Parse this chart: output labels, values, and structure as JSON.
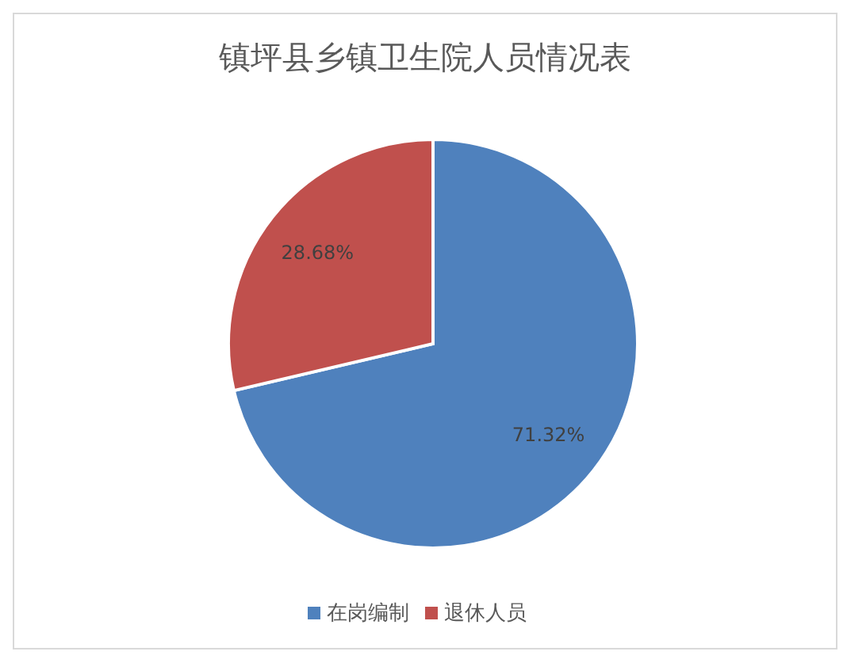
{
  "chart_data": {
    "type": "pie",
    "title": "镇坪县乡镇卫生院人员情况表",
    "categories": [
      "在岗编制",
      "退休人员"
    ],
    "values": [
      71.32,
      28.68
    ],
    "colors": [
      "#4f81bd",
      "#c0504d"
    ],
    "value_labels": [
      "71.32%",
      "28.68%"
    ],
    "legend": "bottom"
  }
}
